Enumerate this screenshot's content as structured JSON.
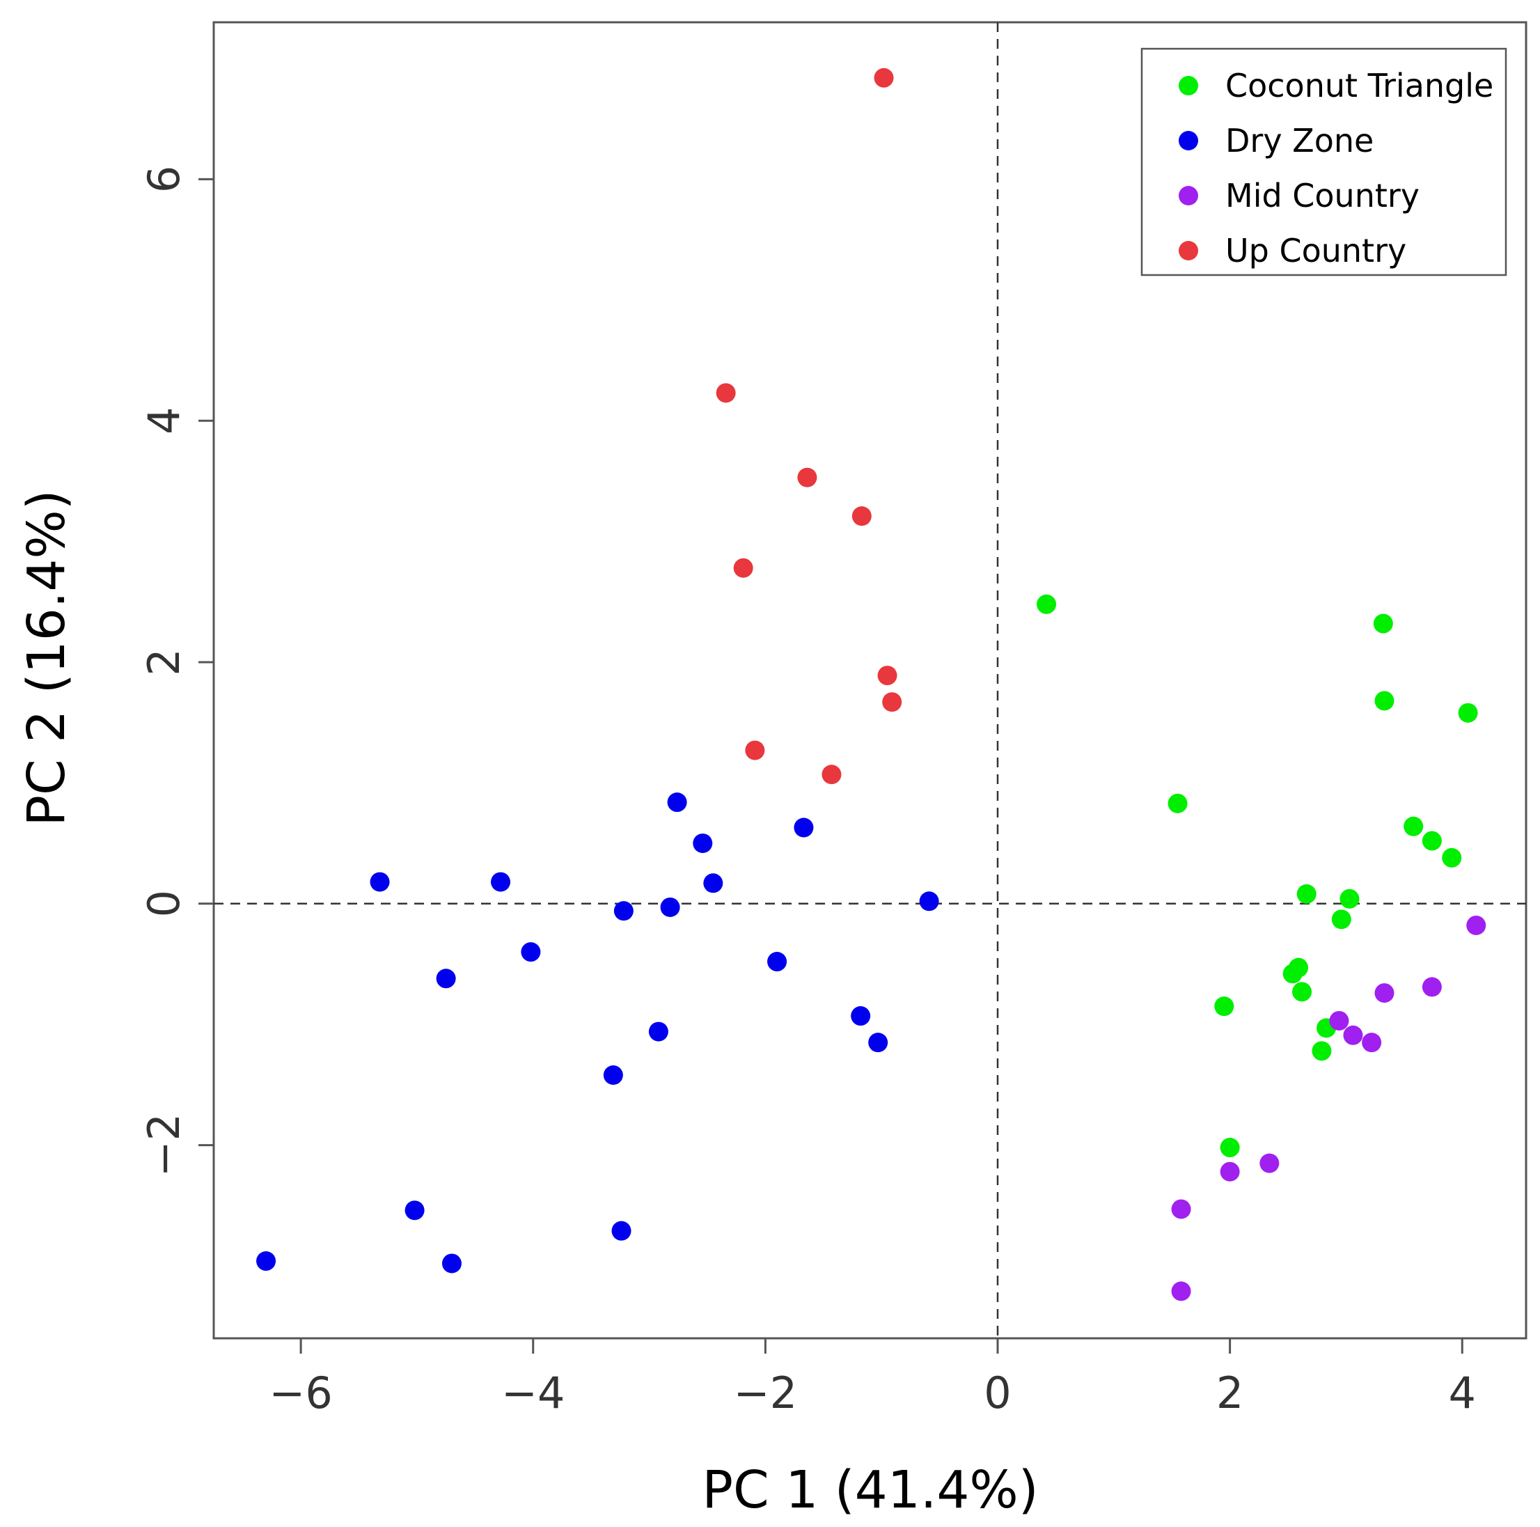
{
  "chart_data": {
    "type": "scatter",
    "title": "",
    "xlabel": "PC 1 (41.4%)",
    "ylabel": "PC 2 (16.4%)",
    "xlim": [
      -6.75,
      4.55
    ],
    "ylim": [
      -3.6,
      7.3
    ],
    "xticks": [
      -6,
      -4,
      -2,
      0,
      2,
      4
    ],
    "yticks": [
      -2,
      0,
      2,
      4,
      6
    ],
    "xtick_labels": [
      "−6",
      "−4",
      "−2",
      "0",
      "2",
      "4"
    ],
    "ytick_labels": [
      "−2",
      "0",
      "2",
      "4",
      "6"
    ],
    "reference_lines": {
      "x": 0,
      "y": 0,
      "style": "dashed"
    },
    "grid": false,
    "legend_position": "top-right",
    "series": [
      {
        "name": "Coconut Triangle",
        "color": "#00ee00",
        "points": [
          [
            0.42,
            2.48
          ],
          [
            1.55,
            0.83
          ],
          [
            3.32,
            2.32
          ],
          [
            3.33,
            1.68
          ],
          [
            4.05,
            1.58
          ],
          [
            3.58,
            0.64
          ],
          [
            3.74,
            0.52
          ],
          [
            3.91,
            0.38
          ],
          [
            2.66,
            0.08
          ],
          [
            3.03,
            0.04
          ],
          [
            2.96,
            -0.13
          ],
          [
            2.59,
            -0.53
          ],
          [
            2.54,
            -0.58
          ],
          [
            2.62,
            -0.73
          ],
          [
            1.95,
            -0.85
          ],
          [
            2.83,
            -1.03
          ],
          [
            2.79,
            -1.22
          ],
          [
            2.0,
            -2.02
          ]
        ]
      },
      {
        "name": "Dry Zone",
        "color": "#0000ee",
        "points": [
          [
            -5.32,
            0.18
          ],
          [
            -4.28,
            0.18
          ],
          [
            -4.02,
            -0.4
          ],
          [
            -4.75,
            -0.62
          ],
          [
            -2.76,
            0.84
          ],
          [
            -2.54,
            0.5
          ],
          [
            -2.45,
            0.17
          ],
          [
            -3.22,
            -0.06
          ],
          [
            -2.82,
            -0.03
          ],
          [
            -1.67,
            0.63
          ],
          [
            -0.59,
            0.02
          ],
          [
            -1.9,
            -0.48
          ],
          [
            -1.18,
            -0.93
          ],
          [
            -1.03,
            -1.15
          ],
          [
            -2.92,
            -1.06
          ],
          [
            -3.31,
            -1.42
          ],
          [
            -5.02,
            -2.54
          ],
          [
            -3.24,
            -2.71
          ],
          [
            -4.7,
            -2.98
          ],
          [
            -6.3,
            -2.96
          ]
        ]
      },
      {
        "name": "Mid Country",
        "color": "#a020f0",
        "points": [
          [
            4.12,
            -0.18
          ],
          [
            3.33,
            -0.74
          ],
          [
            3.74,
            -0.69
          ],
          [
            2.94,
            -0.97
          ],
          [
            3.06,
            -1.09
          ],
          [
            3.22,
            -1.15
          ],
          [
            2.0,
            -2.22
          ],
          [
            2.34,
            -2.15
          ],
          [
            1.58,
            -2.53
          ],
          [
            1.58,
            -3.21
          ]
        ]
      },
      {
        "name": "Up Country",
        "color": "#e8383d",
        "points": [
          [
            -0.98,
            6.84
          ],
          [
            -2.34,
            4.23
          ],
          [
            -1.64,
            3.53
          ],
          [
            -1.17,
            3.21
          ],
          [
            -2.19,
            2.78
          ],
          [
            -0.95,
            1.89
          ],
          [
            -0.91,
            1.67
          ],
          [
            -2.09,
            1.27
          ],
          [
            -1.43,
            1.07
          ]
        ]
      }
    ]
  }
}
